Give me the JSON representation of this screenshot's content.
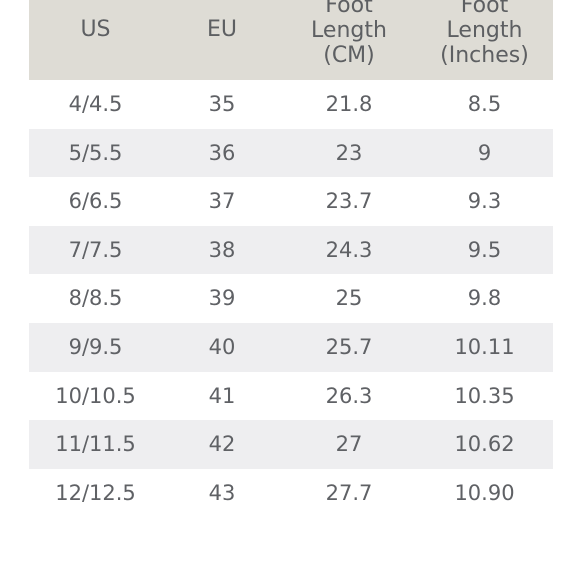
{
  "headers": {
    "us": "US",
    "eu": "EU",
    "cm": "Foot\nLength\n(CM)",
    "inches": "Foot\nLength\n(Inches)"
  },
  "colors": {
    "header_bg": "#dedcd5",
    "alt_row_bg": "#eeeef0",
    "text": "#5f6165"
  },
  "rows": [
    {
      "us": "4/4.5",
      "eu": "35",
      "cm": "21.8",
      "inches": "8.5"
    },
    {
      "us": "5/5.5",
      "eu": "36",
      "cm": "23",
      "inches": "9"
    },
    {
      "us": "6/6.5",
      "eu": "37",
      "cm": "23.7",
      "inches": "9.3"
    },
    {
      "us": "7/7.5",
      "eu": "38",
      "cm": "24.3",
      "inches": "9.5"
    },
    {
      "us": "8/8.5",
      "eu": "39",
      "cm": "25",
      "inches": "9.8"
    },
    {
      "us": "9/9.5",
      "eu": "40",
      "cm": "25.7",
      "inches": "10.11"
    },
    {
      "us": "10/10.5",
      "eu": "41",
      "cm": "26.3",
      "inches": "10.35"
    },
    {
      "us": "11/11.5",
      "eu": "42",
      "cm": "27",
      "inches": "10.62"
    },
    {
      "us": "12/12.5",
      "eu": "43",
      "cm": "27.7",
      "inches": "10.90"
    }
  ]
}
